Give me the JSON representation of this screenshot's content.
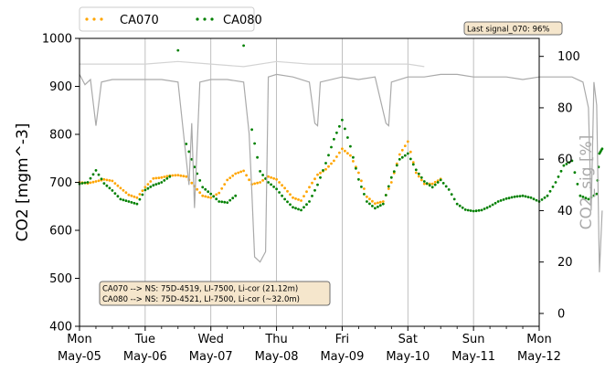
{
  "chart_data": {
    "type": "line",
    "ylabel": "CO2 [mgm^-3]",
    "y2label": "CO2_sig [%]",
    "ylim": [
      400,
      1000
    ],
    "yticks": [
      400,
      500,
      600,
      700,
      800,
      900,
      1000
    ],
    "y2lim": [
      -5,
      107
    ],
    "y2ticks": [
      0,
      20,
      40,
      60,
      80,
      100
    ],
    "xlim": [
      "2025-05-05",
      "2025-05-12"
    ],
    "xticks": [
      {
        "date": "2025-05-05",
        "day": "Mon",
        "label": "May-05"
      },
      {
        "date": "2025-05-06",
        "day": "Tue",
        "label": "May-06"
      },
      {
        "date": "2025-05-07",
        "day": "Wed",
        "label": "May-07"
      },
      {
        "date": "2025-05-08",
        "day": "Thu",
        "label": "May-08"
      },
      {
        "date": "2025-05-09",
        "day": "Fri",
        "label": "May-09"
      },
      {
        "date": "2025-05-10",
        "day": "Sat",
        "label": "May-10"
      },
      {
        "date": "2025-05-11",
        "day": "Sun",
        "label": "May-11"
      },
      {
        "date": "2025-05-12",
        "day": "Mon",
        "label": "May-12"
      }
    ],
    "grid": "vertical",
    "legend_position": "top-left",
    "series": [
      {
        "name": "CA070",
        "axis": "left",
        "style": "dotted",
        "color": "#FFA500",
        "points": [
          [
            "2025-05-05 00:00",
            700
          ],
          [
            "2025-05-05 03:00",
            698
          ],
          [
            "2025-05-05 06:00",
            702
          ],
          [
            "2025-05-05 09:00",
            706
          ],
          [
            "2025-05-05 12:00",
            703
          ],
          [
            "2025-05-05 15:00",
            688
          ],
          [
            "2025-05-05 18:00",
            674
          ],
          [
            "2025-05-05 21:00",
            668
          ],
          [
            "2025-05-06 00:00",
            690
          ],
          [
            "2025-05-06 03:00",
            708
          ],
          [
            "2025-05-06 06:00",
            710
          ],
          [
            "2025-05-06 09:00",
            714
          ],
          [
            "2025-05-06 12:00",
            715
          ],
          [
            "2025-05-06 15:00",
            712
          ],
          [
            "2025-05-06 18:00",
            692
          ],
          [
            "2025-05-06 21:00",
            672
          ],
          [
            "2025-05-07 00:00",
            668
          ],
          [
            "2025-05-07 03:00",
            678
          ],
          [
            "2025-05-07 06:00",
            705
          ],
          [
            "2025-05-07 09:00",
            718
          ],
          [
            "2025-05-07 12:00",
            724
          ],
          [
            "2025-05-07 15:00",
            696
          ],
          [
            "2025-05-07 18:00",
            700
          ],
          [
            "2025-05-07 21:00",
            712
          ],
          [
            "2025-05-08 00:00",
            706
          ],
          [
            "2025-05-08 03:00",
            688
          ],
          [
            "2025-05-08 06:00",
            668
          ],
          [
            "2025-05-08 09:00",
            662
          ],
          [
            "2025-05-08 12:00",
            690
          ],
          [
            "2025-05-08 15:00",
            716
          ],
          [
            "2025-05-08 18:00",
            727
          ],
          [
            "2025-05-08 21:00",
            745
          ],
          [
            "2025-05-09 00:00",
            770
          ],
          [
            "2025-05-09 03:00",
            756
          ],
          [
            "2025-05-09 06:00",
            720
          ],
          [
            "2025-05-09 09:00",
            670
          ],
          [
            "2025-05-09 12:00",
            656
          ],
          [
            "2025-05-09 15:00",
            660
          ],
          [
            "2025-05-09 18:00",
            700
          ],
          [
            "2025-05-09 21:00",
            758
          ],
          [
            "2025-05-10 00:00",
            785
          ],
          [
            "2025-05-10 03:00",
            720
          ],
          [
            "2025-05-10 06:00",
            697
          ],
          [
            "2025-05-10 09:00",
            697
          ],
          [
            "2025-05-10 12:00",
            707
          ]
        ]
      },
      {
        "name": "CA080",
        "axis": "left",
        "style": "dotted",
        "color": "#008000",
        "points": [
          [
            "2025-05-05 00:00",
            697
          ],
          [
            "2025-05-05 03:00",
            700
          ],
          [
            "2025-05-05 06:00",
            725
          ],
          [
            "2025-05-05 09:00",
            698
          ],
          [
            "2025-05-05 12:00",
            683
          ],
          [
            "2025-05-05 15:00",
            665
          ],
          [
            "2025-05-05 18:00",
            660
          ],
          [
            "2025-05-05 21:00",
            655
          ],
          [
            "2025-05-06 00:00",
            684
          ],
          [
            "2025-05-06 03:00",
            694
          ],
          [
            "2025-05-06 06:00",
            700
          ],
          [
            "2025-05-06 09:00",
            712
          ],
          [
            "2025-05-06 12:00",
            975
          ],
          [
            "2025-05-06 15:00",
            780
          ],
          [
            "2025-05-06 18:00",
            732
          ],
          [
            "2025-05-06 21:00",
            690
          ],
          [
            "2025-05-07 00:00",
            676
          ],
          [
            "2025-05-07 03:00",
            660
          ],
          [
            "2025-05-07 06:00",
            658
          ],
          [
            "2025-05-07 09:00",
            672
          ],
          [
            "2025-05-07 12:00",
            985
          ],
          [
            "2025-05-07 15:00",
            810
          ],
          [
            "2025-05-07 18:00",
            723
          ],
          [
            "2025-05-07 21:00",
            700
          ],
          [
            "2025-05-08 00:00",
            686
          ],
          [
            "2025-05-08 03:00",
            665
          ],
          [
            "2025-05-08 06:00",
            648
          ],
          [
            "2025-05-08 09:00",
            642
          ],
          [
            "2025-05-08 12:00",
            660
          ],
          [
            "2025-05-08 15:00",
            695
          ],
          [
            "2025-05-08 18:00",
            740
          ],
          [
            "2025-05-08 21:00",
            790
          ],
          [
            "2025-05-09 00:00",
            830
          ],
          [
            "2025-05-09 03:00",
            775
          ],
          [
            "2025-05-09 06:00",
            706
          ],
          [
            "2025-05-09 09:00",
            660
          ],
          [
            "2025-05-09 12:00",
            646
          ],
          [
            "2025-05-09 15:00",
            655
          ],
          [
            "2025-05-09 18:00",
            710
          ],
          [
            "2025-05-09 21:00",
            748
          ],
          [
            "2025-05-10 00:00",
            760
          ],
          [
            "2025-05-10 03:00",
            726
          ],
          [
            "2025-05-10 06:00",
            702
          ],
          [
            "2025-05-10 09:00",
            690
          ],
          [
            "2025-05-10 12:00",
            705
          ],
          [
            "2025-05-10 15:00",
            685
          ],
          [
            "2025-05-10 18:00",
            655
          ],
          [
            "2025-05-10 21:00",
            643
          ],
          [
            "2025-05-11 00:00",
            640
          ],
          [
            "2025-05-11 03:00",
            642
          ],
          [
            "2025-05-11 06:00",
            650
          ],
          [
            "2025-05-11 09:00",
            660
          ],
          [
            "2025-05-11 12:00",
            666
          ],
          [
            "2025-05-11 15:00",
            670
          ],
          [
            "2025-05-11 18:00",
            672
          ],
          [
            "2025-05-11 21:00",
            668
          ],
          [
            "2025-05-12 00:00",
            660
          ],
          [
            "2025-05-12 03:00",
            672
          ],
          [
            "2025-05-12 06:00",
            700
          ],
          [
            "2025-05-12 09:00",
            735
          ],
          [
            "2025-05-12 12:00",
            745
          ],
          [
            "2025-05-12 15:00",
            672
          ],
          [
            "2025-05-12 18:00",
            665
          ],
          [
            "2025-05-12 21:00",
            676
          ],
          [
            "2025-05-12 22:00",
            760
          ],
          [
            "2025-05-12 23:00",
            770
          ]
        ]
      },
      {
        "name": "",
        "axis": "right",
        "style": "line",
        "color": "#AAAAAA",
        "points": [
          [
            "2025-05-05 00:00",
            93
          ],
          [
            "2025-05-05 02:00",
            89
          ],
          [
            "2025-05-05 04:00",
            91
          ],
          [
            "2025-05-05 06:00",
            73
          ],
          [
            "2025-05-05 08:00",
            90
          ],
          [
            "2025-05-05 12:00",
            91
          ],
          [
            "2025-05-05 18:00",
            91
          ],
          [
            "2025-05-06 00:00",
            91
          ],
          [
            "2025-05-06 06:00",
            91
          ],
          [
            "2025-05-06 12:00",
            90
          ],
          [
            "2025-05-06 14:00",
            70
          ],
          [
            "2025-05-06 16:00",
            50
          ],
          [
            "2025-05-06 17:00",
            74
          ],
          [
            "2025-05-06 18:00",
            41
          ],
          [
            "2025-05-06 20:00",
            90
          ],
          [
            "2025-05-07 00:00",
            91
          ],
          [
            "2025-05-07 06:00",
            91
          ],
          [
            "2025-05-07 12:00",
            90
          ],
          [
            "2025-05-07 14:00",
            70
          ],
          [
            "2025-05-07 15:00",
            47
          ],
          [
            "2025-05-07 16:00",
            22
          ],
          [
            "2025-05-07 18:00",
            20
          ],
          [
            "2025-05-07 20:00",
            24
          ],
          [
            "2025-05-07 21:00",
            92
          ],
          [
            "2025-05-08 00:00",
            93
          ],
          [
            "2025-05-08 06:00",
            92
          ],
          [
            "2025-05-08 12:00",
            90
          ],
          [
            "2025-05-08 14:00",
            74
          ],
          [
            "2025-05-08 15:00",
            73
          ],
          [
            "2025-05-08 16:00",
            90
          ],
          [
            "2025-05-09 00:00",
            92
          ],
          [
            "2025-05-09 06:00",
            91
          ],
          [
            "2025-05-09 12:00",
            92
          ],
          [
            "2025-05-09 16:00",
            74
          ],
          [
            "2025-05-09 17:00",
            73
          ],
          [
            "2025-05-09 18:00",
            90
          ],
          [
            "2025-05-10 00:00",
            92
          ],
          [
            "2025-05-10 06:00",
            92
          ],
          [
            "2025-05-10 12:00",
            93
          ],
          [
            "2025-05-10 18:00",
            93
          ],
          [
            "2025-05-11 00:00",
            92
          ],
          [
            "2025-05-11 06:00",
            92
          ],
          [
            "2025-05-11 12:00",
            92
          ],
          [
            "2025-05-11 18:00",
            91
          ],
          [
            "2025-05-12 00:00",
            92
          ],
          [
            "2025-05-12 12:00",
            92
          ],
          [
            "2025-05-12 16:00",
            90
          ],
          [
            "2025-05-12 18:00",
            80
          ],
          [
            "2025-05-12 19:00",
            40
          ],
          [
            "2025-05-12 20:00",
            90
          ],
          [
            "2025-05-12 21:00",
            81
          ],
          [
            "2025-05-12 22:00",
            16
          ],
          [
            "2025-05-12 23:00",
            40
          ]
        ]
      },
      {
        "name": "",
        "axis": "right",
        "style": "line",
        "color": "#D3D3D3",
        "points": [
          [
            "2025-05-05 00:00",
            97
          ],
          [
            "2025-05-05 12:00",
            97
          ],
          [
            "2025-05-06 00:00",
            97
          ],
          [
            "2025-05-06 12:00",
            98
          ],
          [
            "2025-05-07 00:00",
            97
          ],
          [
            "2025-05-07 12:00",
            96
          ],
          [
            "2025-05-08 00:00",
            98
          ],
          [
            "2025-05-08 12:00",
            97
          ],
          [
            "2025-05-09 00:00",
            97
          ],
          [
            "2025-05-09 12:00",
            97
          ],
          [
            "2025-05-10 00:00",
            97
          ],
          [
            "2025-05-10 06:00",
            96
          ]
        ]
      }
    ]
  },
  "legend": {
    "items": [
      {
        "label": "CA070",
        "color": "#FFA500"
      },
      {
        "label": "CA080",
        "color": "#008000"
      }
    ]
  },
  "annotations": {
    "last_signal": "Last signal_070: 96%",
    "instruments": [
      "CA070 --> NS: 75D-4519, LI-7500, Li-cor (21.12m)",
      "CA080 --> NS: 75D-4521, LI-7500, Li-cor (~32.0m)"
    ]
  },
  "colors": {
    "left_axis_text": "#000000",
    "right_axis_text": "#AAAAAA",
    "grid": "#B0B0B0",
    "annotation_bg": "#F5E6CC",
    "annotation_border": "#6E6E6E"
  }
}
